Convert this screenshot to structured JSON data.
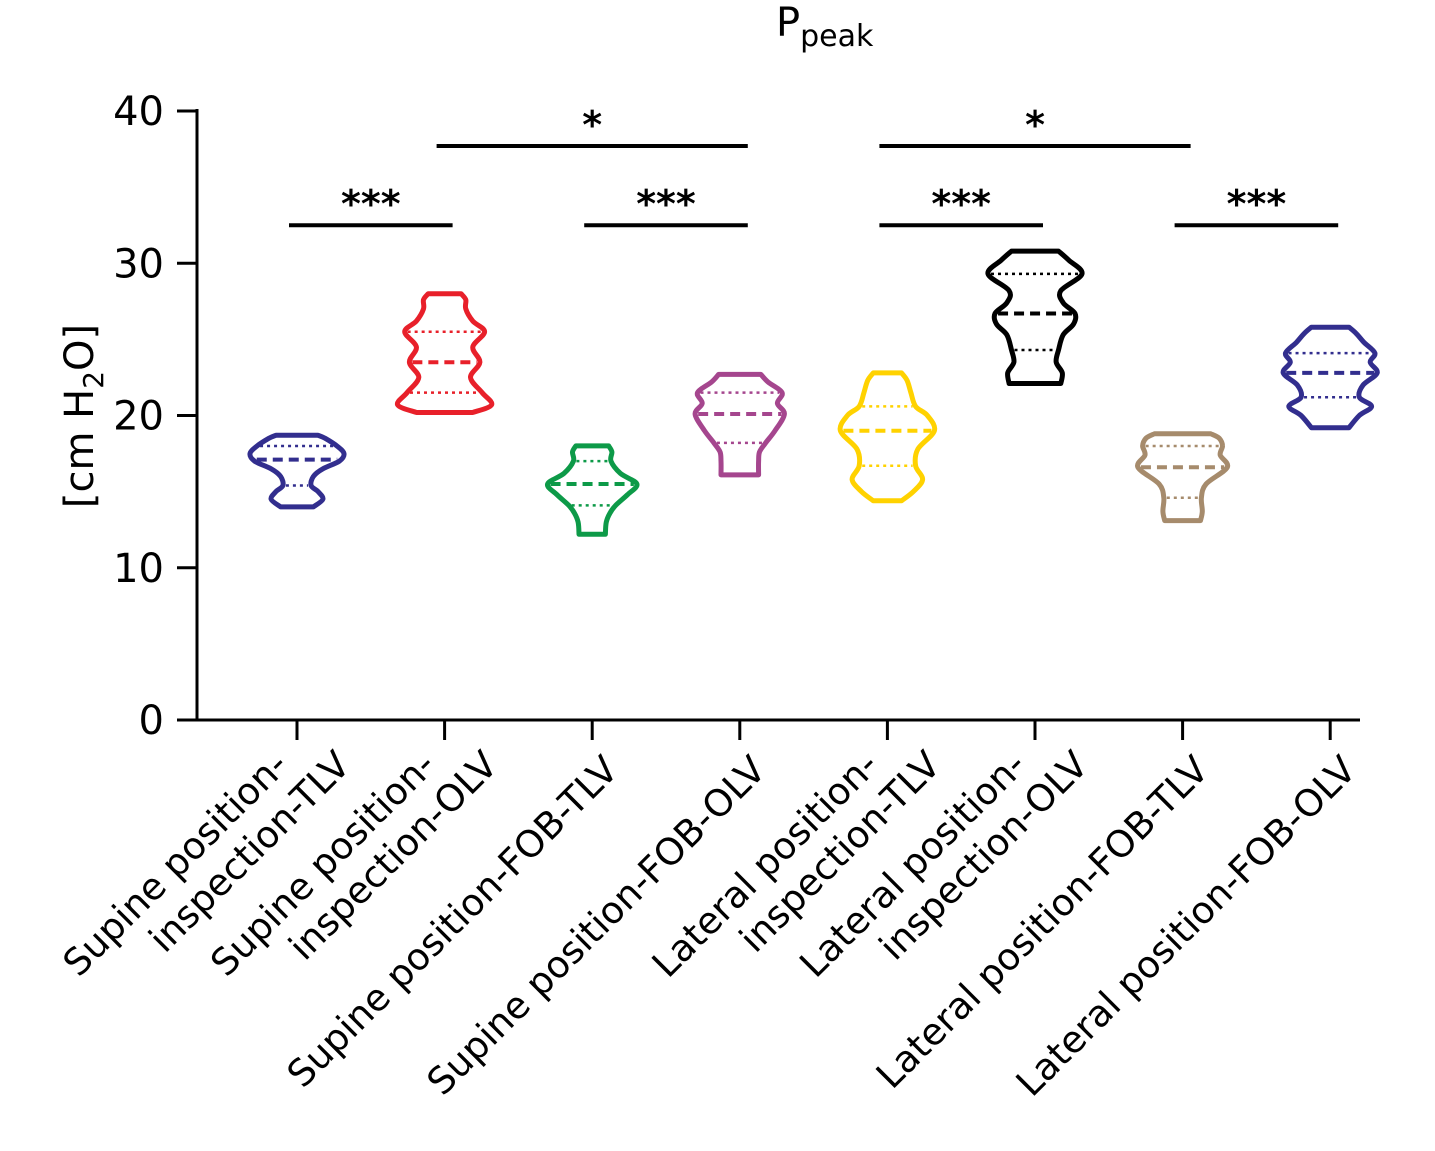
{
  "chart_data": {
    "type": "violin",
    "title": "P",
    "title_subscript": "peak",
    "ylabel": {
      "open": "[cm H",
      "sub": "2",
      "close": "O]"
    },
    "ylim": [
      0,
      40
    ],
    "yticks": [
      "0",
      "10",
      "20",
      "30",
      "40"
    ],
    "grid": false,
    "categories": [
      {
        "line1": "Supine position-",
        "line2": "inspection-TLV"
      },
      {
        "line1": "Supine position-",
        "line2": "inspection-OLV"
      },
      {
        "line1": "Supine position-FOB-TLV",
        "line2": ""
      },
      {
        "line1": "Supine position-FOB-OLV",
        "line2": ""
      },
      {
        "line1": "Lateral position-",
        "line2": "inspection-TLV"
      },
      {
        "line1": "Lateral position-",
        "line2": "inspection-OLV"
      },
      {
        "line1": "Lateral position-FOB-TLV",
        "line2": ""
      },
      {
        "line1": "Lateral position-FOB-OLV",
        "line2": ""
      }
    ],
    "series": [
      {
        "color": "#322E8E",
        "min": 14.0,
        "q1": 15.4,
        "median": 17.1,
        "q3": 18.0,
        "max": 18.7,
        "profile": [
          [
            14.0,
            0.35
          ],
          [
            14.5,
            0.55
          ],
          [
            15.0,
            0.45
          ],
          [
            15.4,
            0.3
          ],
          [
            16.0,
            0.35
          ],
          [
            16.5,
            0.55
          ],
          [
            17.0,
            0.9
          ],
          [
            17.5,
            1.0
          ],
          [
            18.0,
            0.85
          ],
          [
            18.5,
            0.6
          ],
          [
            18.7,
            0.45
          ]
        ]
      },
      {
        "color": "#E8202A",
        "min": 20.2,
        "q1": 21.5,
        "median": 23.5,
        "q3": 25.5,
        "max": 28.0,
        "profile": [
          [
            20.2,
            0.6
          ],
          [
            20.7,
            1.0
          ],
          [
            21.5,
            0.8
          ],
          [
            22.5,
            0.55
          ],
          [
            23.5,
            0.75
          ],
          [
            24.5,
            0.6
          ],
          [
            25.5,
            0.85
          ],
          [
            26.2,
            0.6
          ],
          [
            27.0,
            0.45
          ],
          [
            27.6,
            0.45
          ],
          [
            28.0,
            0.35
          ]
        ]
      },
      {
        "color": "#0D9A48",
        "min": 12.2,
        "q1": 14.1,
        "median": 15.5,
        "q3": 17.0,
        "max": 18.0,
        "profile": [
          [
            12.2,
            0.28
          ],
          [
            13.0,
            0.3
          ],
          [
            13.6,
            0.38
          ],
          [
            14.1,
            0.5
          ],
          [
            14.8,
            0.75
          ],
          [
            15.5,
            0.95
          ],
          [
            16.2,
            0.6
          ],
          [
            17.0,
            0.4
          ],
          [
            17.6,
            0.42
          ],
          [
            18.0,
            0.35
          ]
        ]
      },
      {
        "color": "#A5468E",
        "min": 16.1,
        "q1": 18.2,
        "median": 20.1,
        "q3": 21.5,
        "max": 22.7,
        "profile": [
          [
            16.1,
            0.4
          ],
          [
            17.0,
            0.4
          ],
          [
            17.6,
            0.42
          ],
          [
            18.2,
            0.55
          ],
          [
            19.0,
            0.75
          ],
          [
            20.1,
            0.95
          ],
          [
            20.8,
            0.8
          ],
          [
            21.5,
            0.9
          ],
          [
            22.2,
            0.6
          ],
          [
            22.7,
            0.45
          ]
        ]
      },
      {
        "color": "#FFD200",
        "min": 14.4,
        "q1": 16.7,
        "median": 19.0,
        "q3": 20.6,
        "max": 22.8,
        "profile": [
          [
            14.4,
            0.3
          ],
          [
            15.0,
            0.55
          ],
          [
            15.8,
            0.75
          ],
          [
            16.7,
            0.6
          ],
          [
            17.8,
            0.65
          ],
          [
            19.0,
            1.0
          ],
          [
            20.0,
            0.85
          ],
          [
            20.6,
            0.6
          ],
          [
            21.5,
            0.5
          ],
          [
            22.3,
            0.42
          ],
          [
            22.8,
            0.3
          ]
        ]
      },
      {
        "color": "#000000",
        "min": 22.1,
        "q1": 24.3,
        "median": 26.7,
        "q3": 29.3,
        "max": 30.8,
        "profile": [
          [
            22.1,
            0.55
          ],
          [
            22.8,
            0.58
          ],
          [
            23.5,
            0.45
          ],
          [
            24.3,
            0.5
          ],
          [
            25.3,
            0.6
          ],
          [
            26.0,
            0.82
          ],
          [
            26.7,
            0.85
          ],
          [
            27.4,
            0.6
          ],
          [
            28.2,
            0.55
          ],
          [
            29.3,
            1.0
          ],
          [
            30.2,
            0.72
          ],
          [
            30.8,
            0.5
          ]
        ]
      },
      {
        "color": "#A68B6C",
        "min": 13.1,
        "q1": 14.6,
        "median": 16.6,
        "q3": 18.0,
        "max": 18.8,
        "profile": [
          [
            13.1,
            0.38
          ],
          [
            13.7,
            0.42
          ],
          [
            14.6,
            0.4
          ],
          [
            15.5,
            0.5
          ],
          [
            16.6,
            0.95
          ],
          [
            17.4,
            0.8
          ],
          [
            18.0,
            0.85
          ],
          [
            18.5,
            0.78
          ],
          [
            18.8,
            0.6
          ]
        ]
      },
      {
        "color": "#322E8E",
        "min": 19.2,
        "q1": 21.2,
        "median": 22.8,
        "q3": 24.1,
        "max": 25.8,
        "profile": [
          [
            19.2,
            0.4
          ],
          [
            20.0,
            0.62
          ],
          [
            20.6,
            0.88
          ],
          [
            21.2,
            0.62
          ],
          [
            22.0,
            0.7
          ],
          [
            22.8,
            1.0
          ],
          [
            23.5,
            0.85
          ],
          [
            24.1,
            0.95
          ],
          [
            24.8,
            0.72
          ],
          [
            25.4,
            0.55
          ],
          [
            25.8,
            0.4
          ]
        ]
      }
    ],
    "significance": [
      {
        "from": 0,
        "to": 1,
        "y": 32.5,
        "label": "***"
      },
      {
        "from": 1,
        "to": 3,
        "y": 37.7,
        "label": "*"
      },
      {
        "from": 2,
        "to": 3,
        "y": 32.5,
        "label": "***"
      },
      {
        "from": 4,
        "to": 6,
        "y": 37.7,
        "label": "*"
      },
      {
        "from": 4,
        "to": 5,
        "y": 32.5,
        "label": "***"
      },
      {
        "from": 6,
        "to": 7,
        "y": 32.5,
        "label": "***"
      }
    ]
  }
}
